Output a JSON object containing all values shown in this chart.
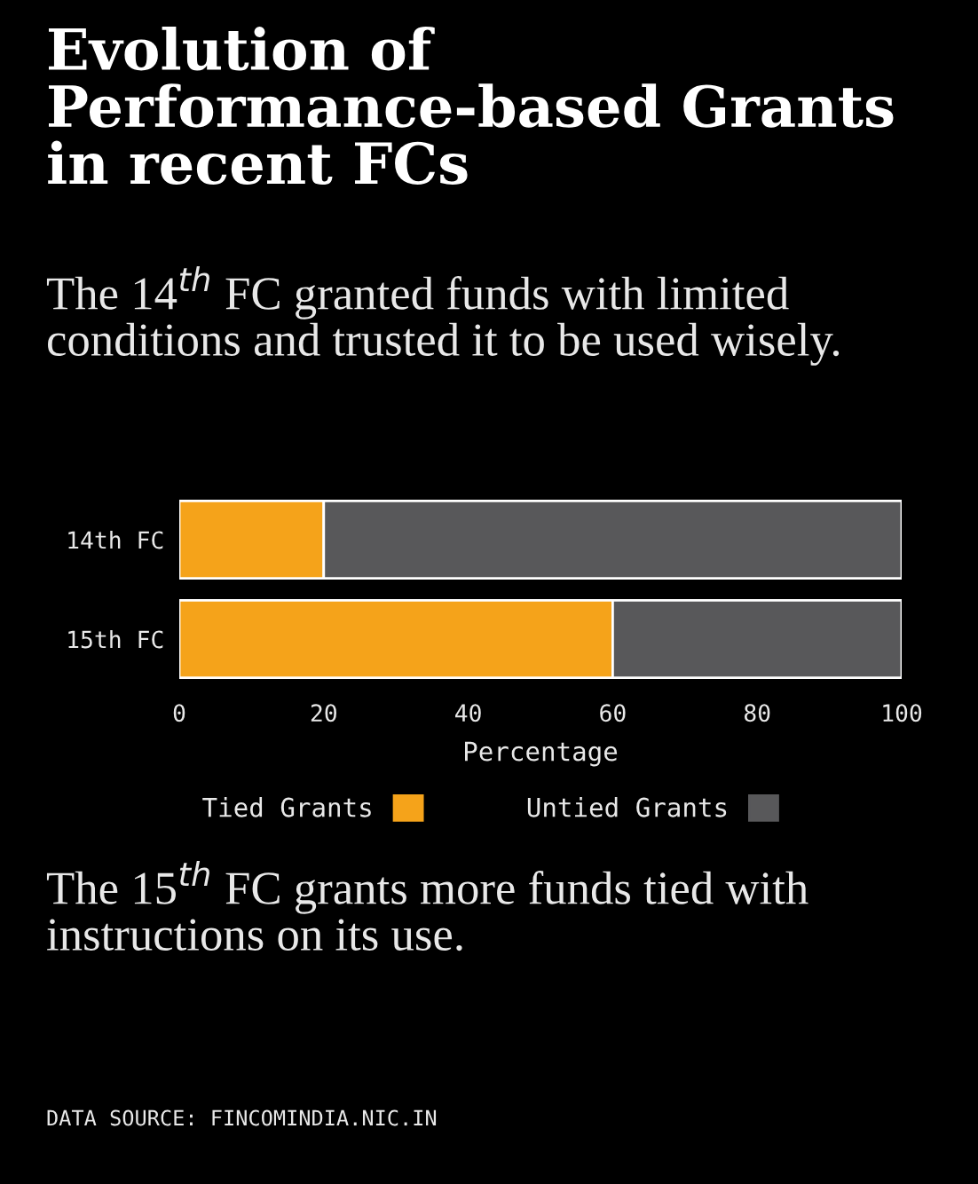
{
  "chart_data": {
    "type": "bar",
    "orientation": "horizontal",
    "stacked": true,
    "title": "Evolution of Performance-based Grants in recent FCs",
    "subtitle": "The 14$^{th}$ FC granted funds with limited conditions and trusted it to be used wisely.",
    "xlabel": "Percentage",
    "categories": [
      "14th FC",
      "15th FC"
    ],
    "series": [
      {
        "name": "Tied Grants",
        "color": "#f5a31a",
        "values": [
          20,
          60
        ]
      },
      {
        "name": "Untied Grants",
        "color": "#58585a",
        "values": [
          80,
          40
        ]
      }
    ],
    "xlim": [
      0,
      100
    ],
    "xticks": [
      0,
      20,
      40,
      60,
      80,
      100
    ],
    "grid": false,
    "legend": "bottom",
    "annotations": [
      "The 15$^{th}$ FC grants more funds tied with instructions on its use.",
      "DATA SOURCE: FINCOMINDIA.NIC.IN"
    ]
  }
}
